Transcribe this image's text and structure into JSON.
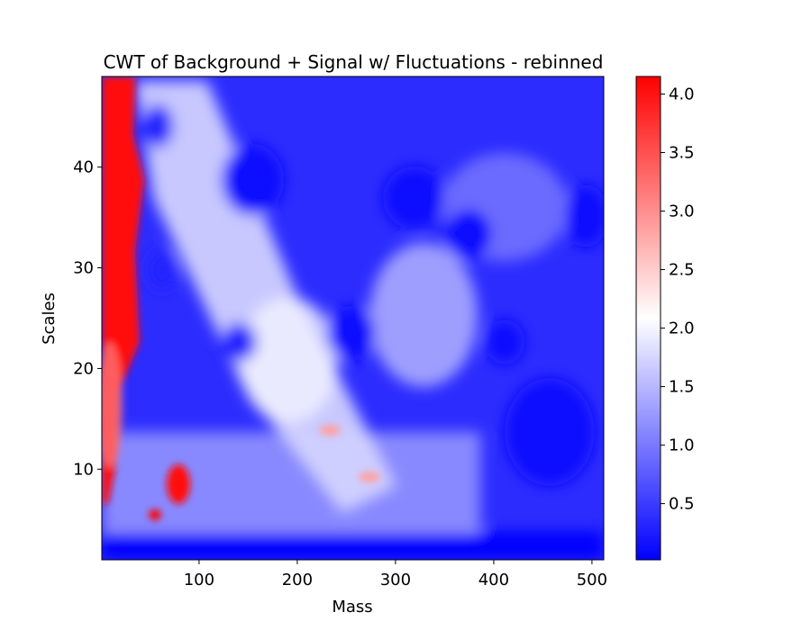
{
  "chart_data": {
    "type": "heatmap",
    "title": "CWT of Background + Signal w/ Fluctuations - rebinned",
    "xlabel": "Mass",
    "ylabel": "Scales",
    "xlim": [
      1,
      512
    ],
    "ylim": [
      1,
      49
    ],
    "x_ticks": [
      100,
      200,
      300,
      400,
      500
    ],
    "y_ticks": [
      10,
      20,
      30,
      40
    ],
    "colormap": {
      "name": "bwr",
      "low_color": "#0000ff",
      "mid_color": "#ffffff",
      "high_color": "#ff0000",
      "range": [
        0.02,
        4.15
      ]
    },
    "colorbar_ticks": [
      0.5,
      1.0,
      1.5,
      2.0,
      2.5,
      3.0,
      3.5,
      4.0
    ],
    "colorbar_tick_labels": [
      "0.5",
      "1.0",
      "1.5",
      "2.0",
      "2.5",
      "3.0",
      "3.5",
      "4.0"
    ],
    "features": [
      {
        "region": "left edge, mass below ~30, scales 1-49",
        "approx_value": 4.1
      },
      {
        "region": "low scales, mass ~50-80",
        "approx_value": 3.9
      },
      {
        "region": "diagonal ridge from mass ~60 scale ~40 to mass ~400 scale ~5",
        "approx_value": 2.0
      },
      {
        "region": "upper right background",
        "approx_value": 0.3
      }
    ],
    "grid": false,
    "legend": "colorbar-right"
  }
}
